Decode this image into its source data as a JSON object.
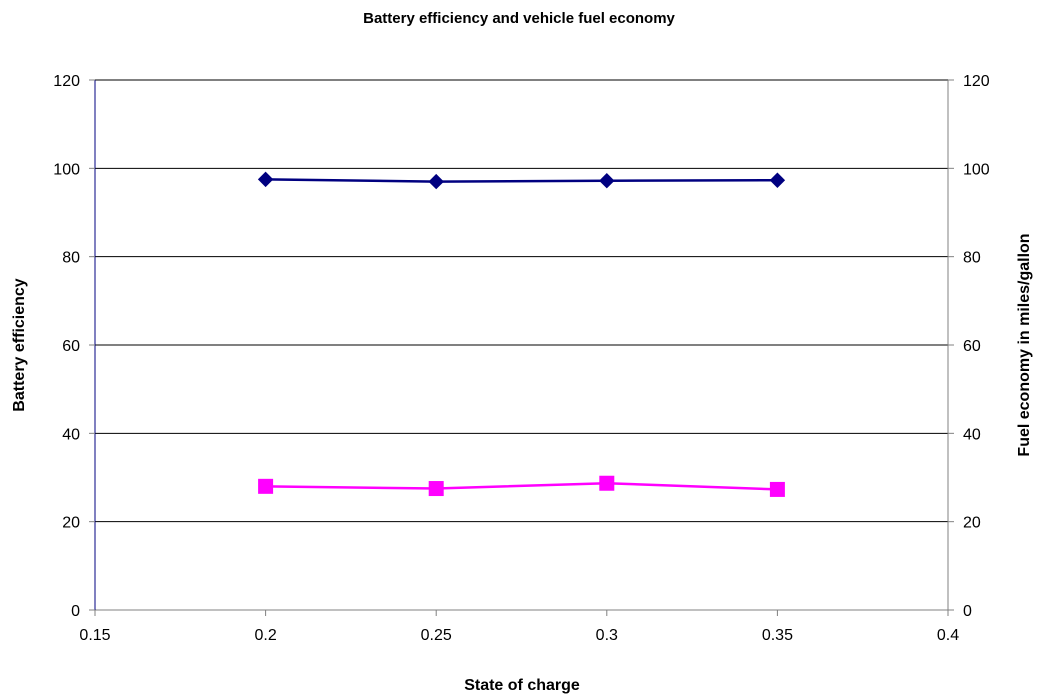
{
  "chart_data": {
    "type": "line",
    "title": "Battery efficiency and vehicle fuel economy",
    "xlabel": "State of charge",
    "ylabel_left": "Battery efficiency",
    "ylabel_right": "Fuel economy in miles/gallon",
    "xlim": [
      0.15,
      0.4
    ],
    "ylim_left": [
      0,
      120
    ],
    "ylim_right": [
      0,
      120
    ],
    "x_ticks": [
      "0.15",
      "0.2",
      "0.25",
      "0.3",
      "0.35",
      "0.4"
    ],
    "y_ticks_left": [
      "0",
      "20",
      "40",
      "60",
      "80",
      "100",
      "120"
    ],
    "y_ticks_right": [
      "0",
      "20",
      "40",
      "60",
      "80",
      "100",
      "120"
    ],
    "grid": "horizontal",
    "legend": "none",
    "x": [
      0.2,
      0.25,
      0.3,
      0.35
    ],
    "series": [
      {
        "values": [
          97.5,
          97.0,
          97.2,
          97.3
        ],
        "axis": "left",
        "color": "#000080",
        "marker": "diamond"
      },
      {
        "values": [
          28.0,
          27.5,
          28.7,
          27.3
        ],
        "axis": "right",
        "color": "#FF00FF",
        "marker": "square"
      }
    ],
    "colors": {
      "axis": "#808080",
      "left_axis_line": "#000080",
      "grid": "#000000"
    }
  }
}
